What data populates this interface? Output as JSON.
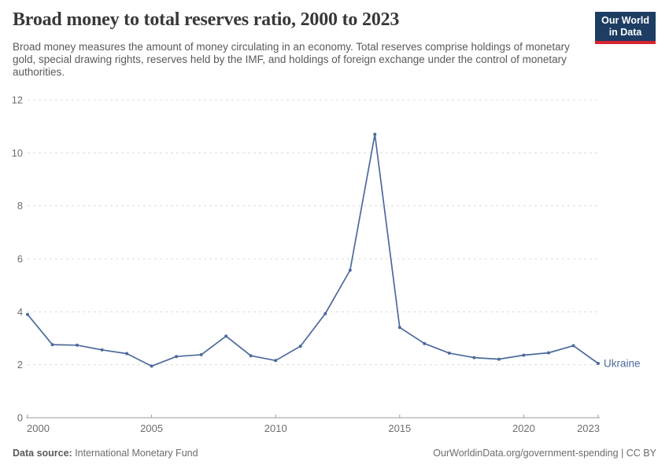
{
  "header": {
    "title": "Broad money to total reserves ratio, 2000 to 2023",
    "subtitle": "Broad money measures the amount of money circulating in an economy. Total reserves comprise holdings of monetary gold, special drawing rights, reserves held by the IMF, and holdings of foreign exchange under the control of monetary authorities.",
    "logo": {
      "line1": "Our World",
      "line2": "in Data"
    }
  },
  "chart_data": {
    "type": "line",
    "title": "Broad money to total reserves ratio, 2000 to 2023",
    "entity": "Ukraine",
    "x": [
      2000,
      2001,
      2002,
      2003,
      2004,
      2005,
      2006,
      2007,
      2008,
      2009,
      2010,
      2011,
      2012,
      2013,
      2014,
      2015,
      2016,
      2017,
      2018,
      2019,
      2020,
      2021,
      2022,
      2023
    ],
    "series": [
      {
        "name": "Ukraine",
        "values": [
          3.9,
          2.76,
          2.74,
          2.56,
          2.42,
          1.95,
          2.31,
          2.38,
          3.08,
          2.34,
          2.16,
          2.7,
          3.93,
          5.57,
          10.7,
          3.41,
          2.8,
          2.44,
          2.27,
          2.21,
          2.36,
          2.45,
          2.72,
          2.05
        ]
      }
    ],
    "xlim": [
      2000,
      2023
    ],
    "ylim": [
      0,
      12
    ],
    "yticks": [
      0,
      2,
      4,
      6,
      8,
      10,
      12
    ],
    "xticks": [
      2000,
      2005,
      2010,
      2015,
      2020,
      2023
    ],
    "grid": "horizontal-dashed",
    "legend": "line-end-label"
  },
  "colors": {
    "line": "#4c6a9c",
    "grid": "#dcdcdc",
    "axis": "#9e9e9e",
    "tick_text": "#6e6e6e",
    "logo_bg": "#1d3d63",
    "logo_accent": "#d8232f"
  },
  "footer": {
    "datasource_label": "Data source:",
    "datasource_value": " International Monetary Fund",
    "attribution": "OurWorldinData.org/government-spending | CC BY"
  }
}
